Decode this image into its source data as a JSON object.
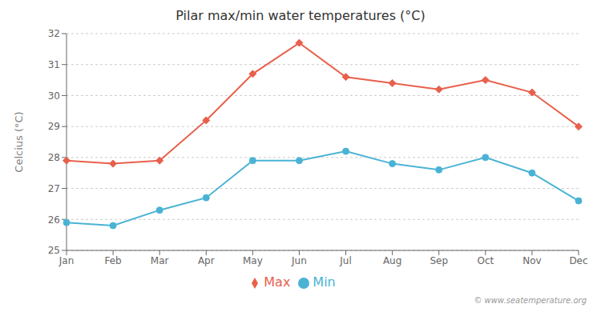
{
  "chart_data": {
    "type": "line",
    "title": "Pilar max/min water temperatures (°C)",
    "y_label": "Celcius (°C)",
    "categories": [
      "Jan",
      "Feb",
      "Mar",
      "Apr",
      "May",
      "Jun",
      "Jul",
      "Aug",
      "Sep",
      "Oct",
      "Nov",
      "Dec"
    ],
    "series": [
      {
        "name": "Max",
        "color": "#e8604c",
        "marker": "diamond",
        "values": [
          27.9,
          27.8,
          27.9,
          29.2,
          30.7,
          31.7,
          30.6,
          30.4,
          30.2,
          30.5,
          30.1,
          29.0
        ]
      },
      {
        "name": "Min",
        "color": "#4ab3d4",
        "marker": "circle",
        "values": [
          25.9,
          25.8,
          26.3,
          26.7,
          27.9,
          27.9,
          28.2,
          27.8,
          27.6,
          28.0,
          27.5,
          26.6
        ]
      }
    ],
    "ylim": [
      25,
      32
    ],
    "yticks": [
      25,
      26,
      27,
      28,
      29,
      30,
      31,
      32
    ],
    "grid": true,
    "legend": "bottom",
    "annotations": [
      "© www.seatemperature.org"
    ]
  }
}
